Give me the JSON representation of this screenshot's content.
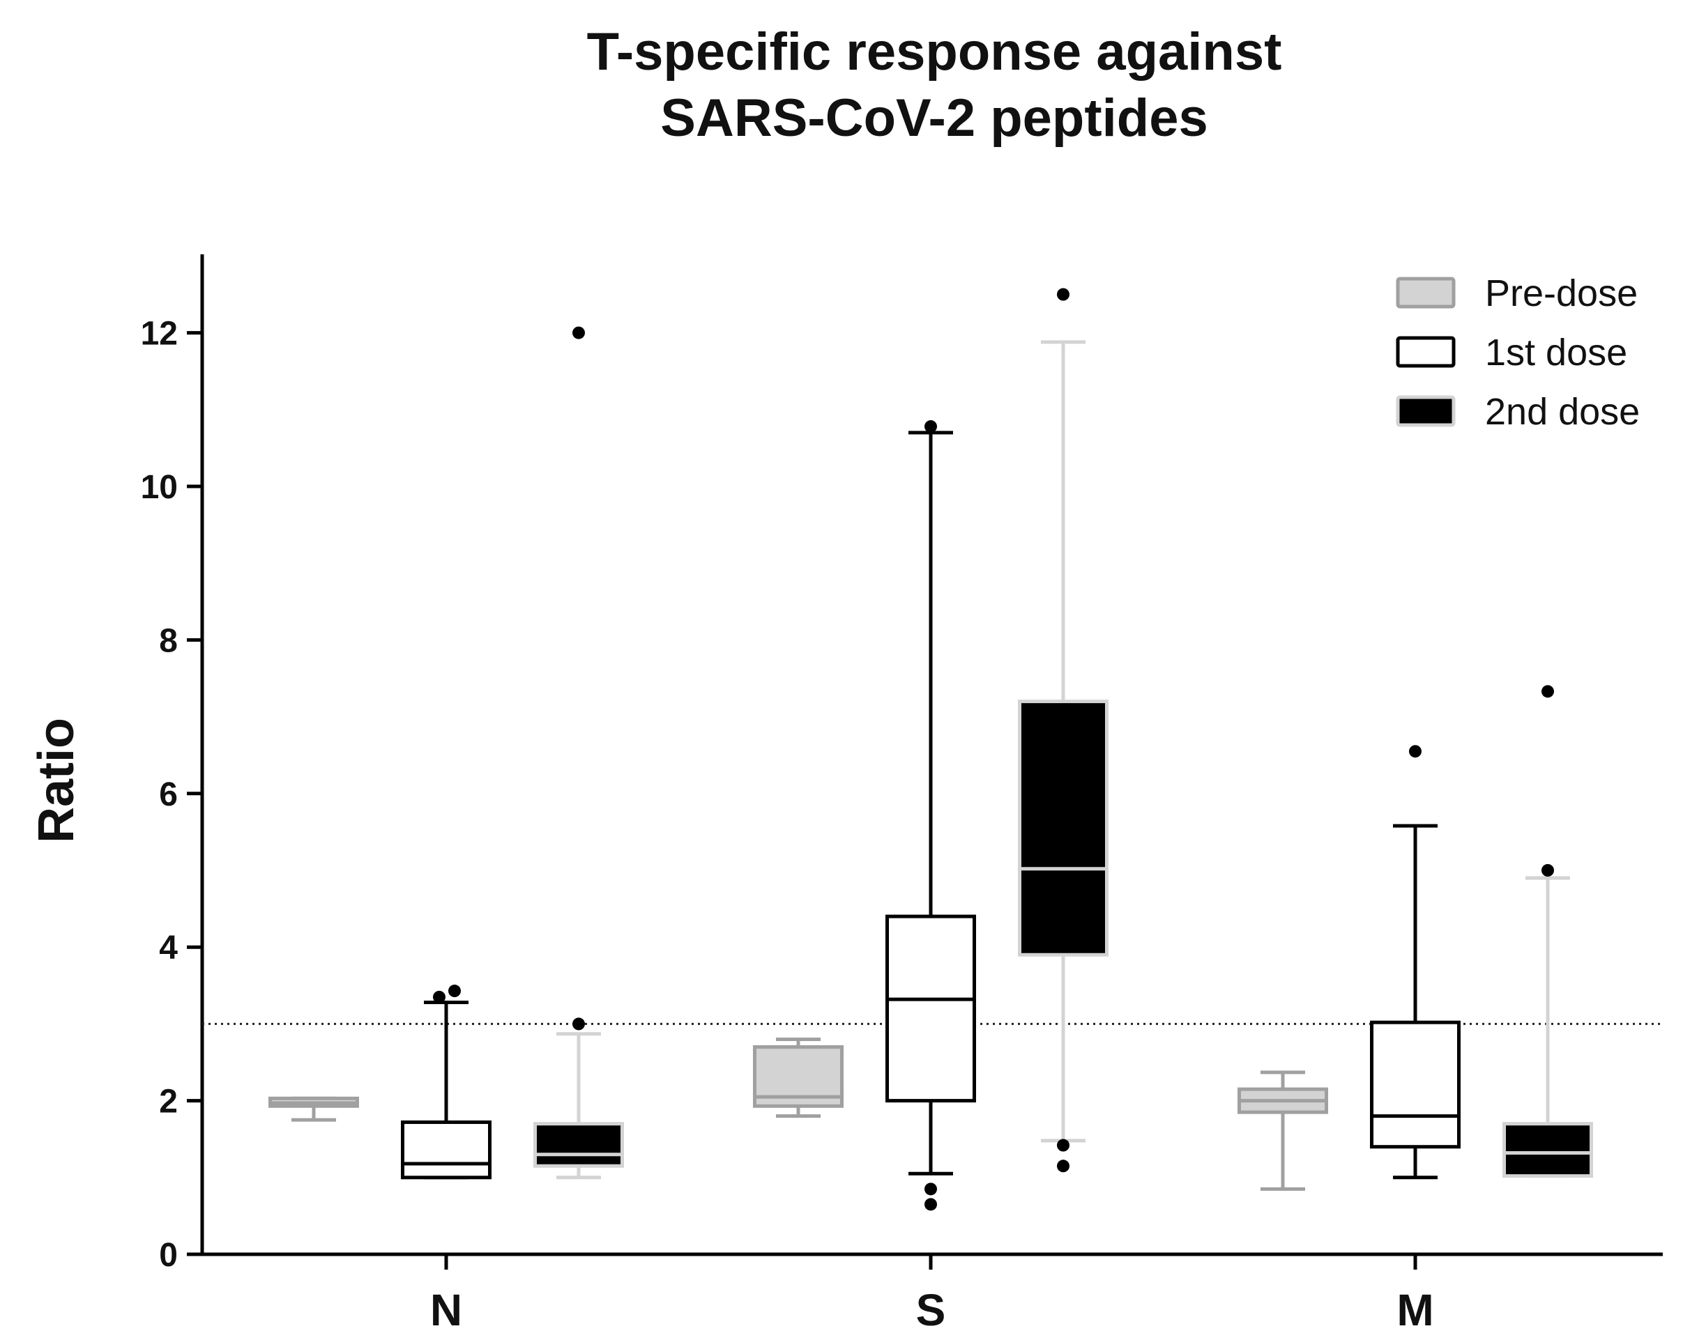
{
  "chart_data": {
    "type": "boxplot",
    "title_lines": [
      "T-specific response against",
      "SARS-CoV-2 peptides"
    ],
    "ylabel": "Ratio",
    "xlabel": "",
    "ylim": [
      0,
      13
    ],
    "yticks": [
      0,
      2,
      4,
      6,
      8,
      10,
      12
    ],
    "categories": [
      "N",
      "S",
      "M"
    ],
    "threshold": 3,
    "legend_position": "top-right",
    "series": [
      {
        "name": "Pre-dose",
        "fill": "#d3d3d3",
        "stroke": "#a0a0a0",
        "median_color": "#a0a0a0",
        "boxes": [
          {
            "category": "N",
            "min": 1.75,
            "q1": 1.93,
            "median": 1.97,
            "q3": 2.03,
            "max": 2.03,
            "outliers": []
          },
          {
            "category": "S",
            "min": 1.8,
            "q1": 1.93,
            "median": 2.05,
            "q3": 2.7,
            "max": 2.8,
            "outliers": []
          },
          {
            "category": "M",
            "min": 0.85,
            "q1": 1.85,
            "median": 2.0,
            "q3": 2.15,
            "max": 2.37,
            "outliers": []
          }
        ]
      },
      {
        "name": "1st dose",
        "fill": "#ffffff",
        "stroke": "#000000",
        "median_color": "#000000",
        "boxes": [
          {
            "category": "N",
            "min": 1.0,
            "q1": 1.0,
            "median": 1.18,
            "q3": 1.72,
            "max": 3.28,
            "outliers": [
              3.35,
              3.43
            ]
          },
          {
            "category": "S",
            "min": 1.05,
            "q1": 2.0,
            "median": 3.32,
            "q3": 4.4,
            "max": 10.7,
            "outliers": [
              10.78,
              0.85,
              0.65
            ]
          },
          {
            "category": "M",
            "min": 1.0,
            "q1": 1.4,
            "median": 1.8,
            "q3": 3.02,
            "max": 5.58,
            "outliers": [
              6.55
            ]
          }
        ]
      },
      {
        "name": "2nd dose",
        "fill": "#000000",
        "stroke": "#d3d3d3",
        "median_color": "#d3d3d3",
        "boxes": [
          {
            "category": "N",
            "min": 1.0,
            "q1": 1.15,
            "median": 1.3,
            "q3": 1.7,
            "max": 2.87,
            "outliers": [
              12.0,
              3.0
            ]
          },
          {
            "category": "S",
            "min": 1.48,
            "q1": 3.9,
            "median": 5.02,
            "q3": 7.2,
            "max": 11.88,
            "outliers": [
              12.5,
              1.42,
              1.15
            ]
          },
          {
            "category": "M",
            "min": 1.02,
            "q1": 1.02,
            "median": 1.32,
            "q3": 1.7,
            "max": 4.9,
            "outliers": [
              7.33,
              5.0
            ]
          }
        ]
      }
    ]
  }
}
